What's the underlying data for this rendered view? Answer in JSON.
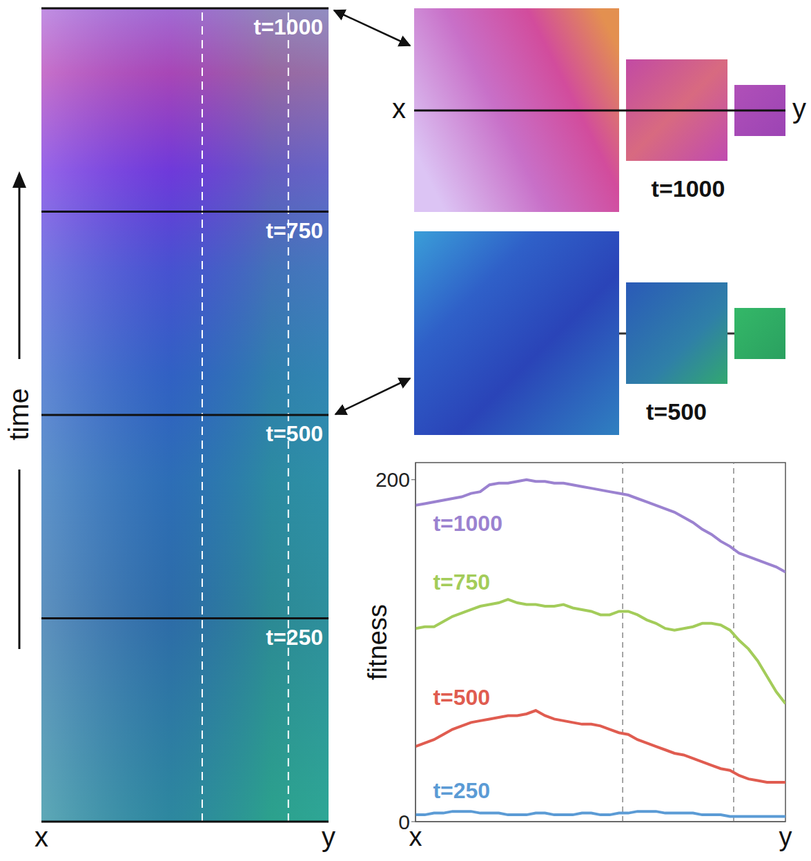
{
  "chart_data": [
    {
      "type": "kymograph",
      "ylabel": "time",
      "xlim": [
        0,
        100
      ],
      "ylim": [
        0,
        1000
      ],
      "xticks": [
        {
          "value": 0,
          "label": "x"
        },
        {
          "value": 100,
          "label": "y"
        }
      ],
      "snapshots": [
        {
          "value": 250,
          "label": "t=250"
        },
        {
          "value": 500,
          "label": "t=500"
        },
        {
          "value": 750,
          "label": "t=750"
        },
        {
          "value": 1000,
          "label": "t=1000"
        }
      ],
      "markers": [
        56,
        86
      ],
      "insets": [
        {
          "time": 1000
        },
        {
          "time": 500
        }
      ]
    },
    {
      "type": "line",
      "ylabel": "fitness",
      "xlim": [
        0,
        100
      ],
      "xticks": [
        {
          "value": 0,
          "label": "x"
        },
        {
          "value": 100,
          "label": "y"
        }
      ],
      "ylim": [
        0,
        210
      ],
      "yticks": [
        0,
        200
      ],
      "markers": [
        56,
        86
      ],
      "x": [
        0,
        2.5,
        5,
        7.5,
        10,
        12.5,
        15,
        17.5,
        20,
        22.5,
        25,
        27.5,
        30,
        32.5,
        35,
        37.5,
        40,
        42.5,
        45,
        47.5,
        50,
        52.5,
        55,
        57.5,
        60,
        62.5,
        65,
        67.5,
        70,
        72.5,
        75,
        77.5,
        80,
        82.5,
        85,
        87.5,
        90,
        92.5,
        95,
        97.5,
        100
      ],
      "series": [
        {
          "name": "t=1000",
          "color": "#9b82d0",
          "values": [
            185,
            186,
            187,
            188,
            189,
            190,
            192,
            193,
            197,
            198,
            198,
            199,
            200,
            199,
            199,
            198,
            198,
            197,
            196,
            195,
            194,
            193,
            192,
            191,
            189,
            187,
            185,
            183,
            181,
            178,
            175,
            171,
            168,
            164,
            161,
            157,
            155,
            153,
            151,
            149,
            146
          ]
        },
        {
          "name": "t=750",
          "color": "#a3cc5a",
          "values": [
            113,
            114,
            114,
            117,
            120,
            122,
            124,
            126,
            127,
            128,
            130,
            128,
            127,
            127,
            126,
            126,
            127,
            125,
            124,
            123,
            121,
            121,
            123,
            123,
            121,
            118,
            116,
            113,
            112,
            113,
            114,
            116,
            116,
            115,
            112,
            106,
            101,
            94,
            85,
            76,
            69
          ]
        },
        {
          "name": "t=500",
          "color": "#e05c50",
          "values": [
            44,
            46,
            48,
            51,
            54,
            56,
            58,
            59,
            60,
            61,
            62,
            62,
            63,
            65,
            62,
            60,
            59,
            58,
            57,
            57,
            56,
            54,
            52,
            51,
            48,
            46,
            44,
            42,
            40,
            39,
            37,
            35,
            33,
            31,
            30,
            27,
            25,
            24,
            23,
            23,
            23
          ]
        },
        {
          "name": "t=250",
          "color": "#5b9bd5",
          "values": [
            4,
            4,
            5,
            5,
            6,
            6,
            6,
            5,
            5,
            5,
            4,
            4,
            4,
            5,
            5,
            4,
            4,
            4,
            5,
            5,
            4,
            4,
            5,
            5,
            6,
            6,
            6,
            5,
            5,
            5,
            5,
            4,
            4,
            4,
            3,
            3,
            3,
            3,
            3,
            3,
            3
          ]
        }
      ]
    }
  ]
}
